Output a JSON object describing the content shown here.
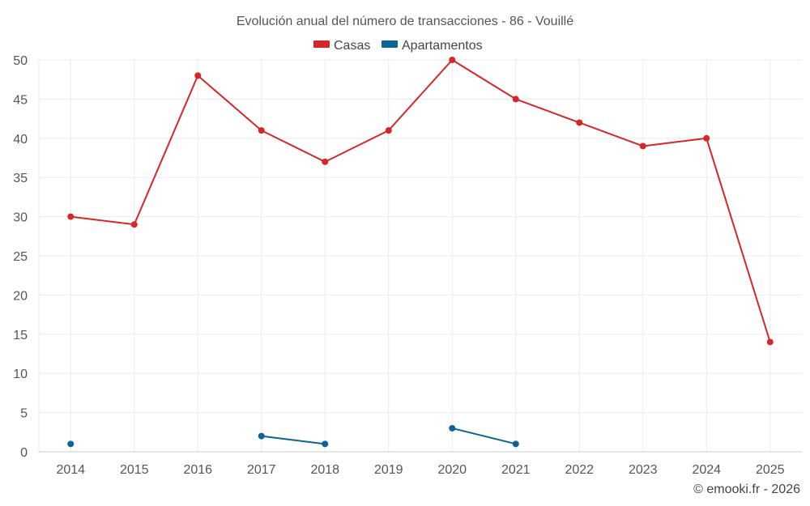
{
  "chart_data": {
    "type": "line",
    "title": "Evolución anual del número de transacciones - 86 - Vouillé",
    "categories": [
      "2014",
      "2015",
      "2016",
      "2017",
      "2018",
      "2019",
      "2020",
      "2021",
      "2022",
      "2023",
      "2024",
      "2025"
    ],
    "ylim": [
      0,
      50
    ],
    "yticks": [
      0,
      5,
      10,
      15,
      20,
      25,
      30,
      35,
      40,
      45,
      50
    ],
    "grid": true,
    "legend_position": "top-center",
    "series": [
      {
        "name": "Casas",
        "color": "#d62728",
        "values": [
          30,
          29,
          48,
          41,
          37,
          41,
          50,
          45,
          42,
          39,
          40,
          14
        ]
      },
      {
        "name": "Apartamentos",
        "color": "#0a6496",
        "values": [
          1,
          null,
          null,
          2,
          1,
          null,
          3,
          1,
          null,
          null,
          null,
          null
        ]
      }
    ],
    "credit": "© emooki.fr - 2026"
  }
}
